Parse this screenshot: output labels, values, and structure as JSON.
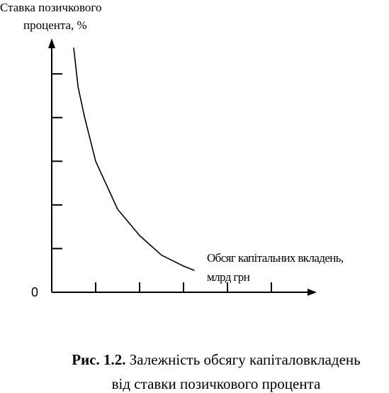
{
  "chart_data": {
    "type": "line",
    "y_label_lines": [
      "Ставка позичкового",
      "процента, %"
    ],
    "x_label_lines": [
      "Обсяг капітальних вкладень,",
      "млрд грн"
    ],
    "origin_label": 0,
    "caption_number": "Рис. 1.2.",
    "caption_lines": [
      "Залежність обсягу капіталовкладень",
      "від ставки позичкового процента"
    ],
    "x": [
      0.5,
      0.6,
      0.75,
      1,
      1.5,
      2,
      2.5,
      3,
      3.25
    ],
    "series": [
      {
        "color": "#000000",
        "values": [
          5.6,
          4.7,
          4.0,
          3.0,
          1.9,
          1.3,
          0.85,
          0.6,
          0.5
        ]
      }
    ],
    "xlim": [
      0,
      6
    ],
    "ylim": [
      0,
      5.75
    ],
    "xticks": [
      1,
      2,
      3,
      4,
      5
    ],
    "yticks": [
      1,
      2,
      3,
      4,
      5
    ]
  }
}
